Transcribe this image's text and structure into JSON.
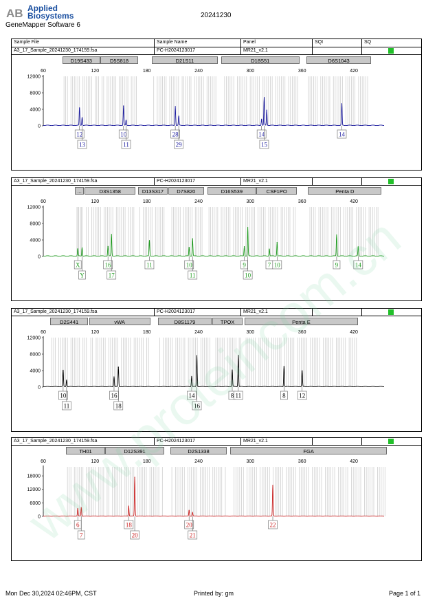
{
  "header": {
    "brand_line1": "Applied",
    "brand_line2": "Biosystems",
    "logo_text": "AB",
    "app_name": "GeneMapper Software 6",
    "doc_title": "20241230"
  },
  "columns": {
    "sample_file": "Sample File",
    "sample_name": "Sample Name",
    "panel": "Panel",
    "sqi": "SQI",
    "sq": "SQ"
  },
  "watermark": "www.proteincom.cn",
  "colors": {
    "blue": "#1c1c9e",
    "green": "#1e9a1e",
    "black": "#000000",
    "red": "#c81e1e",
    "status": "#22c02a",
    "bin": "#c8c8c8"
  },
  "chart_data": [
    {
      "type": "line",
      "dye": "blue",
      "sample_file": "A3_17_Sample_20241230_174159.fsa",
      "sample_name": "PC-H2024123017",
      "panel": "MR21_v2.1",
      "xlim": [
        60,
        455
      ],
      "x_ticks": [
        60,
        120,
        180,
        240,
        300,
        360,
        420
      ],
      "ylim": [
        0,
        12000
      ],
      "y_ticks": [
        0,
        4000,
        8000,
        12000
      ],
      "loci": [
        {
          "name": "D19S433",
          "start": 82,
          "end": 126
        },
        {
          "name": "D5S818",
          "start": 126,
          "end": 170
        },
        {
          "name": "D21S11",
          "start": 186,
          "end": 262
        },
        {
          "name": "D18S51",
          "start": 266,
          "end": 357
        },
        {
          "name": "D6S1043",
          "start": 365,
          "end": 440
        }
      ],
      "peaks": [
        {
          "x": 102,
          "y": 4300
        },
        {
          "x": 105,
          "y": 2000
        },
        {
          "x": 153,
          "y": 4800
        },
        {
          "x": 156,
          "y": 1300
        },
        {
          "x": 213,
          "y": 4700
        },
        {
          "x": 217,
          "y": 2300
        },
        {
          "x": 313,
          "y": 1600
        },
        {
          "x": 316,
          "y": 6800
        },
        {
          "x": 319,
          "y": 3800
        },
        {
          "x": 406,
          "y": 5300
        }
      ],
      "alleles": [
        {
          "label": "12",
          "x": 102,
          "row": 1
        },
        {
          "label": "13",
          "x": 105,
          "row": 2
        },
        {
          "label": "10",
          "x": 153,
          "row": 1
        },
        {
          "label": "11",
          "x": 156,
          "row": 2
        },
        {
          "label": "28",
          "x": 213,
          "row": 1
        },
        {
          "label": "29",
          "x": 217,
          "row": 2
        },
        {
          "label": "14",
          "x": 313,
          "row": 1
        },
        {
          "label": "15",
          "x": 316,
          "row": 2
        },
        {
          "label": "14",
          "x": 406,
          "row": 1
        }
      ]
    },
    {
      "type": "line",
      "dye": "green",
      "sample_file": "A3_17_Sample_20241230_174159.fsa",
      "sample_name": "PC-H2024123017",
      "panel": "MR21_v2.1",
      "xlim": [
        60,
        455
      ],
      "x_ticks": [
        60,
        120,
        180,
        240,
        300,
        360,
        420
      ],
      "ylim": [
        0,
        12000
      ],
      "y_ticks": [
        0,
        4000,
        8000,
        12000
      ],
      "loci": [
        {
          "name": "...",
          "start": 97,
          "end": 107
        },
        {
          "name": "D3S1358",
          "start": 108,
          "end": 167
        },
        {
          "name": "D13S317",
          "start": 170,
          "end": 204
        },
        {
          "name": "D7S820",
          "start": 205,
          "end": 246
        },
        {
          "name": "D16S539",
          "start": 250,
          "end": 307
        },
        {
          "name": "CSF1PO",
          "start": 307,
          "end": 354
        },
        {
          "name": "Penta D",
          "start": 367,
          "end": 452
        }
      ],
      "peaks": [
        {
          "x": 100,
          "y": 1800
        },
        {
          "x": 105,
          "y": 2100
        },
        {
          "x": 135,
          "y": 2400
        },
        {
          "x": 139,
          "y": 5300
        },
        {
          "x": 183,
          "y": 3800
        },
        {
          "x": 229,
          "y": 2200
        },
        {
          "x": 233,
          "y": 4300
        },
        {
          "x": 293,
          "y": 2400
        },
        {
          "x": 297,
          "y": 7000
        },
        {
          "x": 322,
          "y": 1800
        },
        {
          "x": 331,
          "y": 3400
        },
        {
          "x": 400,
          "y": 5200
        },
        {
          "x": 425,
          "y": 2300
        }
      ],
      "alleles": [
        {
          "label": "X",
          "x": 100,
          "row": 1
        },
        {
          "label": "Y",
          "x": 105,
          "row": 2
        },
        {
          "label": "16",
          "x": 135,
          "row": 1
        },
        {
          "label": "17",
          "x": 139,
          "row": 2
        },
        {
          "label": "11",
          "x": 183,
          "row": 1
        },
        {
          "label": "10",
          "x": 229,
          "row": 1
        },
        {
          "label": "11",
          "x": 233,
          "row": 2
        },
        {
          "label": "9",
          "x": 293,
          "row": 1
        },
        {
          "label": "10",
          "x": 297,
          "row": 2
        },
        {
          "label": "7",
          "x": 322,
          "row": 1
        },
        {
          "label": "10",
          "x": 331,
          "row": 1
        },
        {
          "label": "9",
          "x": 400,
          "row": 1
        },
        {
          "label": "14",
          "x": 425,
          "row": 1
        }
      ]
    },
    {
      "type": "line",
      "dye": "black",
      "sample_file": "A3_17_Sample_20241230_174159.fsa",
      "sample_name": "PC-H2024123017",
      "panel": "MR21_v2.1",
      "xlim": [
        60,
        455
      ],
      "x_ticks": [
        60,
        120,
        180,
        240,
        300,
        360,
        420
      ],
      "ylim": [
        0,
        12000
      ],
      "y_ticks": [
        0,
        4000,
        8000,
        12000
      ],
      "loci": [
        {
          "name": "D2S441",
          "start": 68,
          "end": 112
        },
        {
          "name": "vWA",
          "start": 113,
          "end": 184
        },
        {
          "name": "D8S1179",
          "start": 193,
          "end": 255
        },
        {
          "name": "TPOX",
          "start": 256,
          "end": 291
        },
        {
          "name": "Penta E",
          "start": 293,
          "end": 425
        }
      ],
      "peaks": [
        {
          "x": 83,
          "y": 4000
        },
        {
          "x": 87,
          "y": 1700
        },
        {
          "x": 142,
          "y": 2500
        },
        {
          "x": 147,
          "y": 4800
        },
        {
          "x": 232,
          "y": 2600
        },
        {
          "x": 238,
          "y": 7600
        },
        {
          "x": 279,
          "y": 4100
        },
        {
          "x": 286,
          "y": 7700
        },
        {
          "x": 339,
          "y": 5000
        },
        {
          "x": 360,
          "y": 3900
        }
      ],
      "alleles": [
        {
          "label": "10",
          "x": 83,
          "row": 1
        },
        {
          "label": "11",
          "x": 87,
          "row": 2
        },
        {
          "label": "16",
          "x": 142,
          "row": 1
        },
        {
          "label": "18",
          "x": 147,
          "row": 2
        },
        {
          "label": "14",
          "x": 232,
          "row": 1
        },
        {
          "label": "16",
          "x": 238,
          "row": 2
        },
        {
          "label": "8",
          "x": 279,
          "row": 1
        },
        {
          "label": "11",
          "x": 286,
          "row": 1
        },
        {
          "label": "8",
          "x": 339,
          "row": 1
        },
        {
          "label": "12",
          "x": 360,
          "row": 1
        }
      ]
    },
    {
      "type": "line",
      "dye": "red",
      "sample_file": "A3_17_Sample_20241230_174159.fsa",
      "sample_name": "PC-H2024123017",
      "panel": "MR21_v2.1",
      "xlim": [
        60,
        455
      ],
      "x_ticks": [
        60,
        120,
        180,
        240,
        300,
        360,
        420
      ],
      "ylim": [
        0,
        22000
      ],
      "y_ticks": [
        0,
        6000,
        12000,
        18000
      ],
      "loci": [
        {
          "name": "TH01",
          "start": 86,
          "end": 132
        },
        {
          "name": "D12S391",
          "start": 132,
          "end": 200
        },
        {
          "name": "D2S1338",
          "start": 207,
          "end": 273
        },
        {
          "name": "FGA",
          "start": 277,
          "end": 458
        }
      ],
      "peaks": [
        {
          "x": 100,
          "y": 3500
        },
        {
          "x": 104,
          "y": 3900
        },
        {
          "x": 159,
          "y": 4600
        },
        {
          "x": 166,
          "y": 17400
        },
        {
          "x": 229,
          "y": 2700
        },
        {
          "x": 233,
          "y": 1600
        },
        {
          "x": 326,
          "y": 13800
        }
      ],
      "alleles": [
        {
          "label": "6",
          "x": 100,
          "row": 1
        },
        {
          "label": "7",
          "x": 104,
          "row": 2
        },
        {
          "label": "18",
          "x": 159,
          "row": 1
        },
        {
          "label": "20",
          "x": 166,
          "row": 2
        },
        {
          "label": "20",
          "x": 229,
          "row": 1
        },
        {
          "label": "21",
          "x": 233,
          "row": 2
        },
        {
          "label": "22",
          "x": 326,
          "row": 1
        }
      ]
    }
  ],
  "footer": {
    "date": "Mon Dec 30,2024 02:46PM, CST",
    "printed_by": "Printed by: gm",
    "page": "Page 1 of 1"
  }
}
